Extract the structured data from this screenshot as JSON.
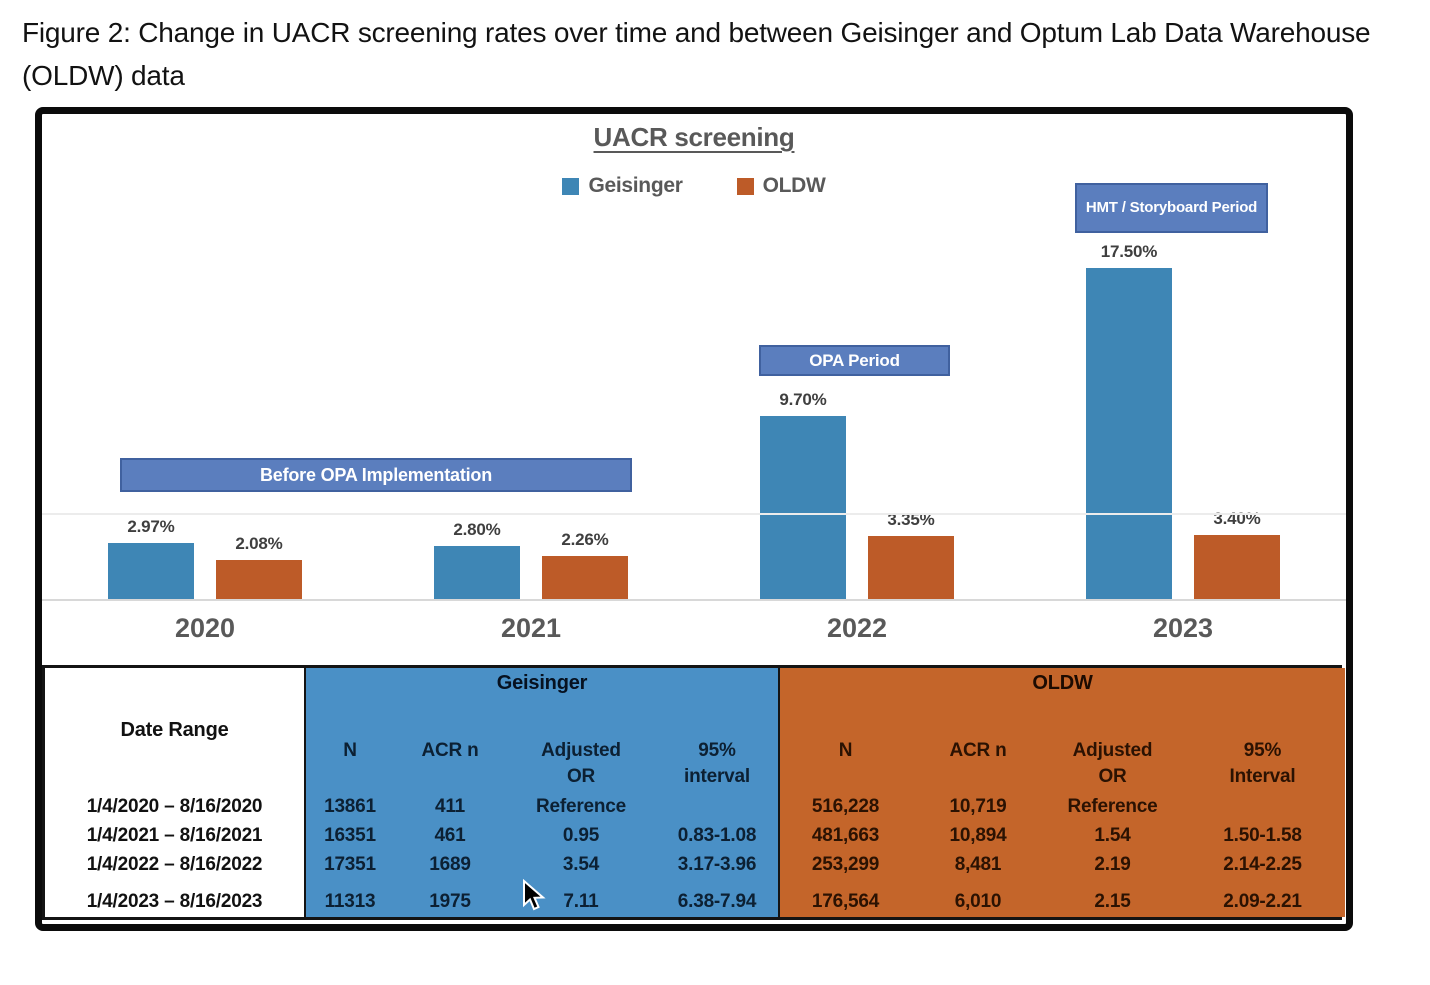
{
  "page": {
    "title": "Figure 2: Change in UACR screening rates over time and between Geisinger and Optum Lab Data Warehouse (OLDW) data"
  },
  "chart_data": {
    "type": "bar",
    "title": "UACR screening",
    "categories": [
      "2020",
      "2021",
      "2022",
      "2023"
    ],
    "series": [
      {
        "name": "Geisinger",
        "color": "#3e86b5",
        "values": [
          2.97,
          2.8,
          9.7,
          17.5
        ],
        "labels": [
          "2.97%",
          "2.80%",
          "9.70%",
          "17.50%"
        ]
      },
      {
        "name": "OLDW",
        "color": "#bd5b28",
        "values": [
          2.08,
          2.26,
          3.35,
          3.4
        ],
        "labels": [
          "2.08%",
          "2.26%",
          "3.35%",
          "3.40%"
        ]
      }
    ],
    "ylim": [
      0,
      18.5
    ],
    "ylabel": "",
    "xlabel": "",
    "grid": "single faint horizontal gridline, light gray baseline",
    "legend_position": "top-center",
    "annotations": [
      {
        "text": "Before OPA Implementation",
        "span": [
          "2020",
          "2021"
        ]
      },
      {
        "text": "OPA Period",
        "span": [
          "2022"
        ]
      },
      {
        "text": "HMT / Storyboard Period",
        "span": [
          "2023"
        ]
      }
    ]
  },
  "table": {
    "date_range_header": "Date Range",
    "sections": [
      {
        "label": "Geisinger"
      },
      {
        "label": "OLDW"
      }
    ],
    "geisinger_columns": [
      "N",
      "ACR n",
      "Adjusted OR",
      "95% interval"
    ],
    "oldw_columns": [
      "N",
      "ACR n",
      "Adjusted OR",
      "95% Interval"
    ],
    "rows": [
      {
        "date_range": "1/4/2020 – 8/16/2020",
        "geisinger": [
          "13861",
          "411",
          "Reference",
          ""
        ],
        "oldw": [
          "516,228",
          "10,719",
          "Reference",
          ""
        ]
      },
      {
        "date_range": "1/4/2021 – 8/16/2021",
        "geisinger": [
          "16351",
          "461",
          "0.95",
          "0.83-1.08"
        ],
        "oldw": [
          "481,663",
          "10,894",
          "1.54",
          "1.50-1.58"
        ]
      },
      {
        "date_range": "1/4/2022 – 8/16/2022",
        "geisinger": [
          "17351",
          "1689",
          "3.54",
          "3.17-3.96"
        ],
        "oldw": [
          "253,299",
          "8,481",
          "2.19",
          "2.14-2.25"
        ]
      },
      {
        "date_range": "1/4/2023 – 8/16/2023",
        "geisinger": [
          "11313",
          "1975",
          "7.11",
          "6.38-7.94"
        ],
        "oldw": [
          "176,564",
          "6,010",
          "2.15",
          "2.09-2.21"
        ]
      }
    ]
  },
  "colors": {
    "geisinger_bar": "#3e86b5",
    "oldw_bar": "#bd5b28",
    "table_geisinger_bg": "#4a90c6",
    "table_oldw_bg": "#c4652a",
    "banner_fill": "#5b7ebe",
    "banner_border": "#40619f",
    "axis_text": "#595959"
  }
}
